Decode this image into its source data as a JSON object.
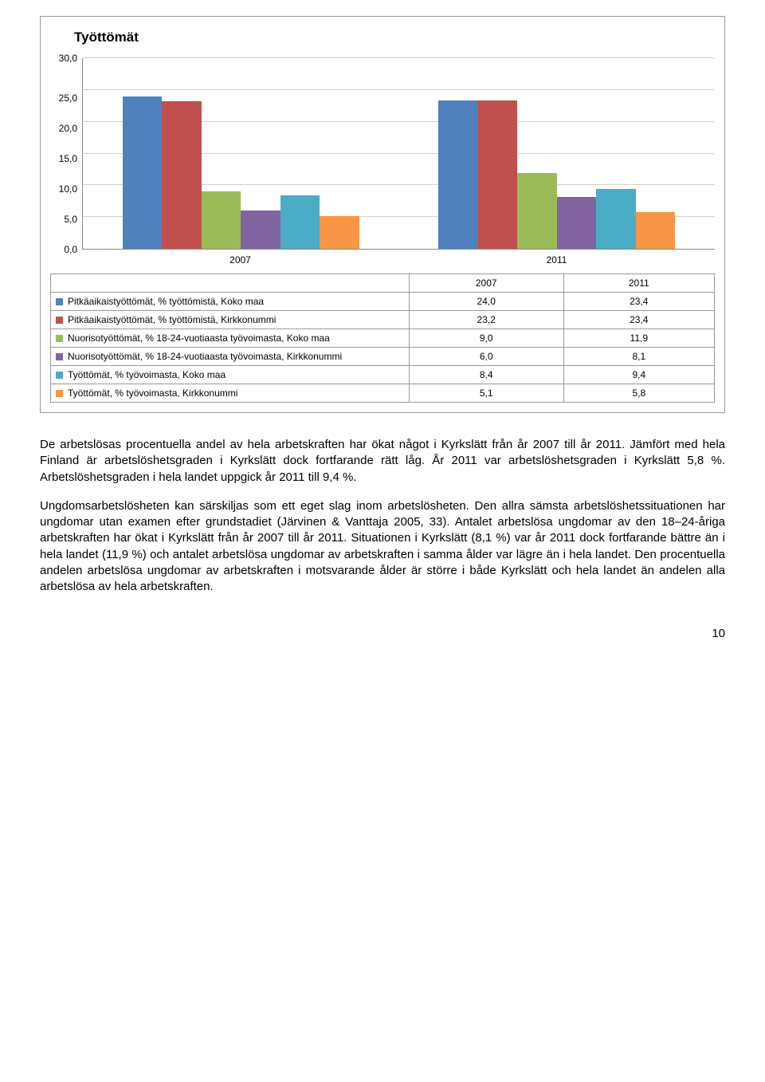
{
  "chart": {
    "title": "Työttömät",
    "type": "bar",
    "ylim": [
      0,
      30
    ],
    "ytick_step": 5,
    "yticks": [
      "30,0",
      "25,0",
      "20,0",
      "15,0",
      "10,0",
      "5,0",
      "0,0"
    ],
    "grid_color": "#d0d0d0",
    "axis_color": "#888888",
    "background_color": "#ffffff",
    "categories": [
      "2007",
      "2011"
    ],
    "series": [
      {
        "label": "Pitkäaikaistyöttömät, % työttömistä, Koko maa",
        "color": "#4f81bd",
        "values": [
          24.0,
          23.4
        ],
        "display": [
          "24,0",
          "23,4"
        ]
      },
      {
        "label": "Pitkäaikaistyöttömät, % työttömistä, Kirkkonummi",
        "color": "#c0504d",
        "values": [
          23.2,
          23.4
        ],
        "display": [
          "23,2",
          "23,4"
        ]
      },
      {
        "label": "Nuorisotyöttömät, % 18-24-vuotiaasta työvoimasta, Koko maa",
        "color": "#9bbb59",
        "values": [
          9.0,
          11.9
        ],
        "display": [
          "9,0",
          "11,9"
        ]
      },
      {
        "label": "Nuorisotyöttömät, % 18-24-vuotiaasta työvoimasta, Kirkkonummi",
        "color": "#8064a2",
        "values": [
          6.0,
          8.1
        ],
        "display": [
          "6,0",
          "8,1"
        ]
      },
      {
        "label": "Työttömät, % työvoimasta, Koko maa",
        "color": "#4bacc6",
        "values": [
          8.4,
          9.4
        ],
        "display": [
          "8,4",
          "9,4"
        ]
      },
      {
        "label": "Työttömät, % työvoimasta, Kirkkonummi",
        "color": "#f79646",
        "values": [
          5.1,
          5.8
        ],
        "display": [
          "5,1",
          "5,8"
        ]
      }
    ],
    "bar_width_pct": 14.2,
    "label_fontsize": 12,
    "title_fontsize": 17
  },
  "paragraphs": {
    "p1": "De arbetslösas procentuella andel av hela arbetskraften har ökat något i Kyrkslätt från år 2007 till år 2011. Jämfört med hela Finland är arbetslöshetsgraden i Kyrkslätt dock fortfarande rätt låg. År 2011 var arbetslöshetsgraden i Kyrkslätt 5,8 %. Arbetslöshetsgraden i hela landet uppgick år 2011 till 9,4 %.",
    "p2": "Ungdomsarbetslösheten kan särskiljas som ett eget slag inom arbetslösheten. Den allra sämsta arbetslöshetssituationen har ungdomar utan examen efter grundstadiet (Järvinen & Vanttaja 2005, 33). Antalet arbetslösa ungdomar av den 18–24-åriga arbetskraften har ökat i Kyrkslätt från år 2007 till år 2011. Situationen i Kyrkslätt (8,1 %) var år 2011 dock fortfarande bättre än i hela landet (11,9 %) och antalet arbetslösa ungdomar av arbetskraften i samma ålder var lägre än i hela landet. Den procentuella andelen arbetslösa ungdomar av arbetskraften i motsvarande ålder är större i både Kyrkslätt och hela landet än andelen alla arbetslösa av hela arbetskraften."
  },
  "page_number": "10"
}
